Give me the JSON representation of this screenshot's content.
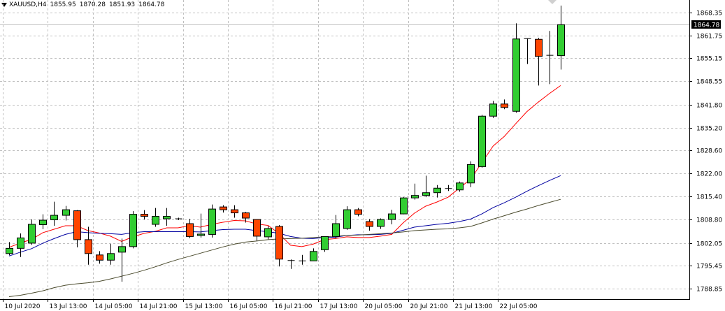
{
  "header": {
    "symbol": "XAUUSD,H4",
    "open": "1855.95",
    "high": "1870.28",
    "low": "1851.93",
    "close": "1864.78"
  },
  "price_tag": "1864.78",
  "colors": {
    "bull": "#32cd32",
    "bear": "#ff4500",
    "wick": "#000000",
    "grid": "#c0c0c0",
    "ma_fast": "#ff0000",
    "ma_mid": "#0000a0",
    "ma_slow": "#4b4b2d",
    "price_line": "#c0c0c0",
    "price_tag_bg": "#000000",
    "price_tag_fg": "#ffffff"
  },
  "chart_data": {
    "type": "candlestick",
    "symbol": "XAUUSD",
    "timeframe": "H4",
    "ylim": [
      1785.9,
      1871.9
    ],
    "y_ticks": [
      "1868.35",
      "1861.75",
      "1855.15",
      "1848.55",
      "1841.80",
      "1835.20",
      "1828.60",
      "1822.00",
      "1815.40",
      "1808.80",
      "1802.05",
      "1795.45",
      "1788.85"
    ],
    "x_ticks": [
      "10 Jul 2020",
      "13 Jul 13:00",
      "14 Jul 05:00",
      "14 Jul 21:00",
      "15 Jul 13:00",
      "16 Jul 05:00",
      "16 Jul 21:00",
      "17 Jul 13:00",
      "20 Jul 05:00",
      "20 Jul 21:00",
      "21 Jul 13:00",
      "22 Jul 05:00"
    ],
    "candles": [
      [
        1799.0,
        1802.3,
        1798.5,
        1800.5
      ],
      [
        1800.5,
        1804.8,
        1798.0,
        1803.5
      ],
      [
        1802.0,
        1808.8,
        1801.5,
        1807.4
      ],
      [
        1807.3,
        1810.3,
        1806.0,
        1808.6
      ],
      [
        1808.7,
        1813.9,
        1807.0,
        1810.0
      ],
      [
        1810.0,
        1812.7,
        1808.5,
        1811.6
      ],
      [
        1811.3,
        1811.5,
        1800.8,
        1803.0
      ],
      [
        1803.0,
        1806.7,
        1795.8,
        1799.0
      ],
      [
        1798.6,
        1799.7,
        1796.1,
        1797.1
      ],
      [
        1797.1,
        1801.8,
        1795.8,
        1799.0
      ],
      [
        1799.4,
        1803.3,
        1790.9,
        1801.0
      ],
      [
        1801.0,
        1811.2,
        1800.5,
        1810.3
      ],
      [
        1810.3,
        1811.5,
        1808.8,
        1809.7
      ],
      [
        1807.4,
        1812.1,
        1806.7,
        1809.7
      ],
      [
        1809.0,
        1812.1,
        1807.0,
        1809.7
      ],
      [
        1809.0,
        1809.3,
        1808.6,
        1809.0
      ],
      [
        1807.6,
        1809.0,
        1803.4,
        1803.9
      ],
      [
        1804.2,
        1810.5,
        1803.6,
        1804.6
      ],
      [
        1804.5,
        1813.1,
        1803.6,
        1811.8
      ],
      [
        1812.4,
        1812.9,
        1810.8,
        1811.6
      ],
      [
        1811.6,
        1812.9,
        1809.3,
        1810.7
      ],
      [
        1810.7,
        1811.0,
        1807.9,
        1809.2
      ],
      [
        1808.8,
        1808.8,
        1802.6,
        1804.0
      ],
      [
        1803.8,
        1807.0,
        1803.1,
        1806.2
      ],
      [
        1806.8,
        1807.2,
        1795.3,
        1797.4
      ],
      [
        1797.0,
        1797.3,
        1794.6,
        1796.8
      ],
      [
        1796.7,
        1798.6,
        1795.8,
        1796.9
      ],
      [
        1796.9,
        1800.5,
        1796.9,
        1799.6
      ],
      [
        1800.1,
        1803.6,
        1799.5,
        1803.9
      ],
      [
        1803.9,
        1810.1,
        1803.3,
        1807.6
      ],
      [
        1806.2,
        1812.6,
        1805.8,
        1811.6
      ],
      [
        1811.6,
        1812.1,
        1809.7,
        1810.3
      ],
      [
        1808.2,
        1808.9,
        1805.6,
        1806.8
      ],
      [
        1806.8,
        1809.1,
        1806.1,
        1808.8
      ],
      [
        1808.8,
        1811.6,
        1807.4,
        1810.4
      ],
      [
        1810.4,
        1815.2,
        1810.3,
        1815.0
      ],
      [
        1815.0,
        1819.1,
        1814.5,
        1815.7
      ],
      [
        1815.7,
        1821.4,
        1815.2,
        1816.5
      ],
      [
        1816.5,
        1818.7,
        1815.1,
        1817.8
      ],
      [
        1817.6,
        1818.7,
        1817.0,
        1817.7
      ],
      [
        1817.3,
        1819.7,
        1816.8,
        1819.3
      ],
      [
        1819.3,
        1825.5,
        1818.1,
        1824.6
      ],
      [
        1824.0,
        1838.9,
        1823.7,
        1838.5
      ],
      [
        1838.5,
        1842.9,
        1838.0,
        1842.0
      ],
      [
        1842.0,
        1843.3,
        1840.5,
        1841.0
      ],
      [
        1839.9,
        1865.2,
        1839.5,
        1860.7
      ],
      [
        1860.8,
        1860.8,
        1853.5,
        1860.7
      ],
      [
        1860.6,
        1861.0,
        1847.3,
        1855.7
      ],
      [
        1856.0,
        1863.0,
        1847.7,
        1855.9
      ],
      [
        1855.9,
        1870.3,
        1851.9,
        1864.8
      ]
    ],
    "series": [
      {
        "values": [
          1800.8,
          1802.0,
          1803.1,
          1805.0,
          1806.0,
          1807.0,
          1807.0,
          1805.6,
          1804.9,
          1804.0,
          1802.5,
          1803.8,
          1804.8,
          1805.4,
          1806.4,
          1806.4,
          1807.0,
          1806.6,
          1807.4,
          1808.0,
          1808.5,
          1808.4,
          1807.5,
          1807.1,
          1804.7,
          1801.4,
          1801.0,
          1801.7,
          1803.0,
          1803.3,
          1803.8,
          1803.6,
          1803.6,
          1804.0,
          1804.5,
          1807.8,
          1810.6,
          1812.6,
          1813.8,
          1815.2,
          1817.8,
          1820.4,
          1825.1,
          1829.9,
          1832.7,
          1836.3,
          1839.8,
          1842.5,
          1845.0,
          1847.3
        ]
      },
      {
        "values": [
          1798.3,
          1799.4,
          1800.4,
          1802.0,
          1803.3,
          1804.5,
          1805.3,
          1805.0,
          1804.8,
          1804.7,
          1804.5,
          1805.0,
          1805.3,
          1805.3,
          1805.3,
          1805.3,
          1805.3,
          1805.2,
          1805.6,
          1805.9,
          1806.0,
          1806.0,
          1805.6,
          1805.3,
          1804.8,
          1803.9,
          1803.4,
          1803.3,
          1803.6,
          1803.7,
          1804.2,
          1804.4,
          1804.4,
          1804.5,
          1804.8,
          1805.7,
          1806.6,
          1807.0,
          1807.4,
          1807.7,
          1808.2,
          1808.9,
          1810.4,
          1812.2,
          1813.6,
          1815.2,
          1816.9,
          1818.5,
          1820.0,
          1821.4
        ]
      },
      {
        "values": [
          1786.6,
          1787.0,
          1787.6,
          1788.3,
          1789.2,
          1789.9,
          1790.3,
          1790.6,
          1791.0,
          1791.7,
          1792.5,
          1793.3,
          1794.2,
          1795.2,
          1796.3,
          1797.3,
          1798.2,
          1799.1,
          1800.0,
          1800.9,
          1801.7,
          1802.3,
          1802.6,
          1803.0,
          1803.2,
          1803.3,
          1803.4,
          1803.6,
          1803.8,
          1804.0,
          1804.2,
          1804.3,
          1804.5,
          1804.7,
          1804.9,
          1805.2,
          1805.6,
          1805.8,
          1806.0,
          1806.1,
          1806.4,
          1806.8,
          1807.8,
          1808.9,
          1809.9,
          1810.9,
          1811.8,
          1812.8,
          1813.7,
          1814.6
        ]
      }
    ]
  }
}
